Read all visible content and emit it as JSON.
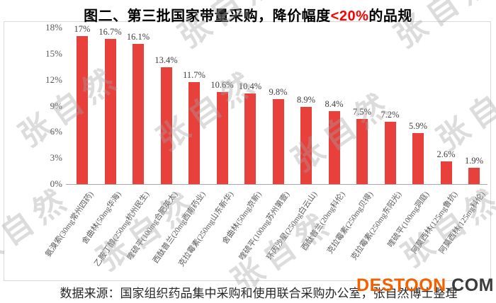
{
  "title": {
    "prefix": "图二、第三批国家带量采购，降价幅度",
    "highlight": "<20%",
    "suffix": "的品规"
  },
  "chart_data": {
    "type": "bar",
    "title": "图二、第三批国家带量采购，降价幅度<20%的品规",
    "categories": [
      "氨溴索(30mg常州四药)",
      "舍曲林(50mg华海)",
      "乙胺丁醇(250mg杭州民生)",
      "喹硫平(100mg合肥英太)",
      "西酞普兰(20mg西南药业)",
      "克拉霉素(250mg山东新华)",
      "舍曲林(50mg京新)",
      "喹硫平(100mg苏州第壹)",
      "环丙沙星(250mg白云山)",
      "西酞普兰(20mg科伦)",
      "克拉霉素(250mg贝得)",
      "克拉霉素(250mg东阳光)",
      "喹硫平(100mg洞庭)",
      "阿莫西林(125mg鲁抗)",
      "阿莫西林(125mg科伦)"
    ],
    "values": [
      17,
      16.7,
      16.1,
      13.4,
      11.7,
      10.6,
      10.4,
      9.8,
      8.9,
      8.4,
      7.5,
      7.2,
      5.9,
      2.6,
      1.9
    ],
    "value_labels": [
      "17%",
      "16.7%",
      "16.1%",
      "13.4%",
      "11.7%",
      "10.6%",
      "10.4%",
      "9.8%",
      "8.9%",
      "8.4%",
      "7.5%",
      "7.2%",
      "5.9%",
      "2.6%",
      "1.9%"
    ],
    "y_ticks": [
      "0%",
      "3%",
      "6%",
      "9%",
      "12%",
      "15%",
      "18%"
    ],
    "ylim": [
      0,
      18
    ],
    "xlabel": "",
    "ylabel": "",
    "bar_color": "#e8403a",
    "grid": false,
    "legend_position": "none"
  },
  "source_note": "数据来源：国家组织药品集中采购和使用联合采购办公室，张自然博士整理",
  "watermark": {
    "text": "张自然"
  },
  "logo": {
    "name": "DESTOON",
    "tld": ".COM",
    "name_color": "#f26100",
    "tld_color": "#3b3b3b"
  }
}
